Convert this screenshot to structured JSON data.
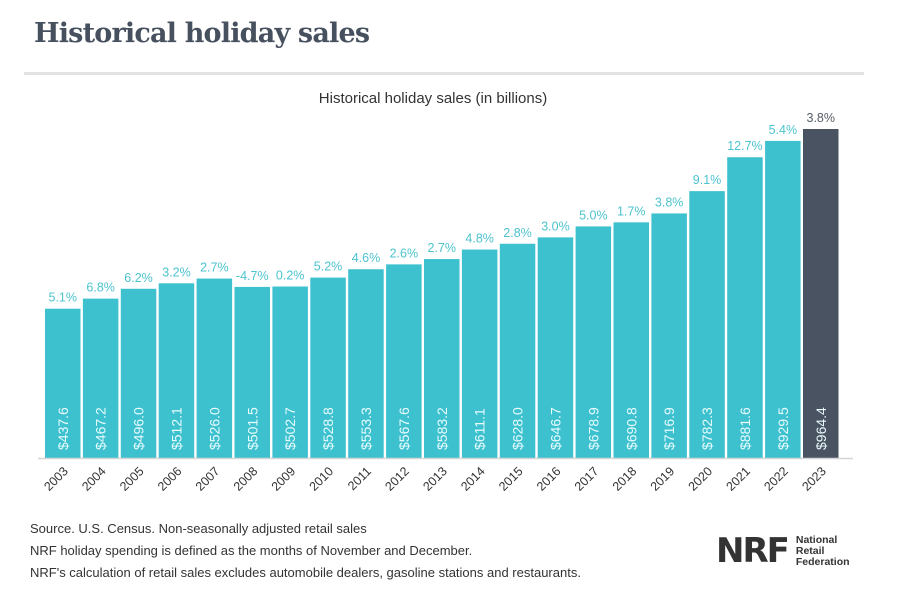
{
  "header": {
    "title": "Historical holiday sales"
  },
  "footnotes": [
    "Source. U.S. Census. Non-seasonally adjusted retail sales",
    "NRF holiday spending is defined as the months of November and December.",
    "NRF's calculation of retail sales excludes automobile dealers, gasoline stations and restaurants."
  ],
  "logo": {
    "mark": "NRF",
    "lines": [
      "National",
      "Retail",
      "Federation"
    ]
  },
  "colors": {
    "bar": "#3dc1cf",
    "highlight": "#4a5362",
    "growth_label": "#4dc3cf",
    "highlight_label": "#555c66",
    "value_label": "#e8fbfd",
    "axis": "#d5d5d5"
  },
  "chart_data": {
    "type": "bar",
    "title": "Historical holiday sales (in billions)",
    "xlabel": "",
    "ylabel": "",
    "ylim": [
      0,
      964.4
    ],
    "grid": false,
    "legend": "none",
    "categories": [
      "2003",
      "2004",
      "2005",
      "2006",
      "2007",
      "2008",
      "2009",
      "2010",
      "2011",
      "2012",
      "2013",
      "2014",
      "2015",
      "2016",
      "2017",
      "2018",
      "2019",
      "2020",
      "2021",
      "2022",
      "2023"
    ],
    "values": [
      437.6,
      467.2,
      496.0,
      512.1,
      526.0,
      501.5,
      502.7,
      528.8,
      553.3,
      567.6,
      583.2,
      611.1,
      628.0,
      646.7,
      678.9,
      690.8,
      716.9,
      782.3,
      881.6,
      929.5,
      964.4
    ],
    "value_labels": [
      "$437.6",
      "$467.2",
      "$496.0",
      "$512.1",
      "$526.0",
      "$501.5",
      "$502.7",
      "$528.8",
      "$553.3",
      "$567.6",
      "$583.2",
      "$611.1",
      "$628.0",
      "$646.7",
      "$678.9",
      "$690.8",
      "$716.9",
      "$782.3",
      "$881.6",
      "$929.5",
      "$964.4"
    ],
    "growth_labels": [
      "5.1%",
      "6.8%",
      "6.2%",
      "3.2%",
      "2.7%",
      "-4.7%",
      "0.2%",
      "5.2%",
      "4.6%",
      "2.6%",
      "2.7%",
      "4.8%",
      "2.8%",
      "3.0%",
      "5.0%",
      "1.7%",
      "3.8%",
      "9.1%",
      "12.7%",
      "5.4%",
      "3.8%"
    ],
    "highlighted_category": "2023"
  }
}
